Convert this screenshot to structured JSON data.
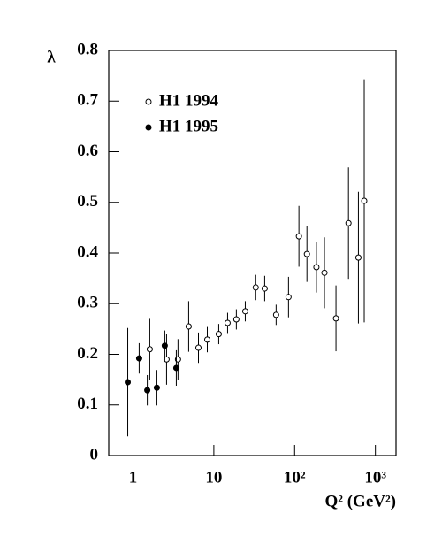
{
  "chart_data": {
    "type": "scatter",
    "y_label": "λ",
    "x_label": "Q² (GeV²)",
    "xscale": "log",
    "xlim": [
      0.5,
      1800
    ],
    "ylim": [
      0,
      0.8
    ],
    "xticks": [
      1,
      {
        "value": 10,
        "label": "10"
      },
      {
        "value": 100,
        "label": "10²"
      },
      {
        "value": 1000,
        "label": "10³"
      }
    ],
    "yticks": [
      0,
      0.1,
      0.2,
      0.3,
      0.4,
      0.5,
      0.6,
      0.7,
      0.8
    ],
    "legend": "top-left",
    "series": [
      {
        "name": "H1 1994",
        "color": "#000000",
        "marker": "open",
        "x": [
          1.61,
          2.6,
          3.6,
          4.88,
          6.45,
          8.3,
          11.5,
          14.8,
          19,
          24.5,
          33,
          42.6,
          59,
          84,
          113,
          142,
          186,
          234,
          325,
          464,
          616,
          727
        ],
        "values": [
          0.21,
          0.19,
          0.19,
          0.255,
          0.213,
          0.229,
          0.24,
          0.262,
          0.269,
          0.285,
          0.332,
          0.33,
          0.278,
          0.313,
          0.433,
          0.398,
          0.372,
          0.361,
          0.271,
          0.459,
          0.391,
          0.503
        ],
        "errors": [
          0.06,
          0.05,
          0.04,
          0.05,
          0.03,
          0.025,
          0.02,
          0.02,
          0.02,
          0.02,
          0.025,
          0.025,
          0.02,
          0.04,
          0.06,
          0.055,
          0.05,
          0.07,
          0.065,
          0.11,
          0.13,
          0.24
        ]
      },
      {
        "name": "H1 1995",
        "color": "#000000",
        "marker": "filled",
        "x": [
          0.86,
          1.19,
          1.5,
          1.97,
          2.47,
          3.43
        ],
        "values": [
          0.145,
          0.192,
          0.129,
          0.134,
          0.217,
          0.173
        ],
        "errors": [
          0.107,
          0.03,
          0.03,
          0.035,
          0.03,
          0.035
        ]
      }
    ]
  }
}
